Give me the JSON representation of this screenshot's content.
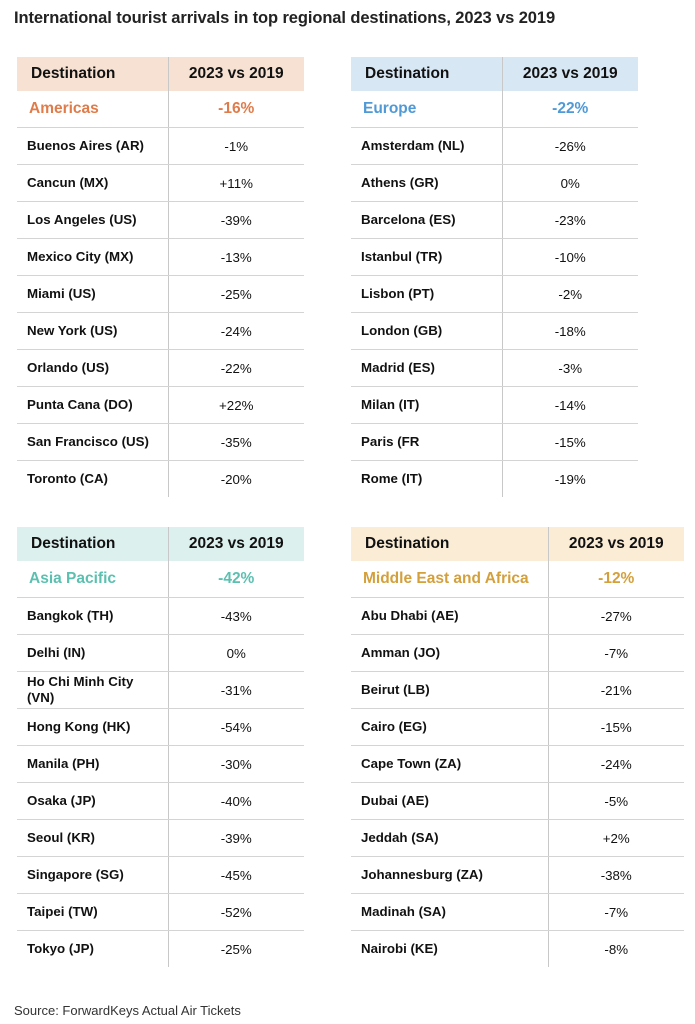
{
  "title": "International tourist arrivals in top regional destinations, 2023 vs 2019",
  "source": "Source: ForwardKeys Actual Air Tickets",
  "columns": {
    "destination": "Destination",
    "change": "2023 vs 2019"
  },
  "regions": [
    {
      "name": "Americas",
      "total": "-16%",
      "header_color": "#f6e1d3",
      "accent_color": "#e07b4a",
      "rows": [
        {
          "destination": "Buenos Aires (AR)",
          "change": "-1%"
        },
        {
          "destination": "Cancun (MX)",
          "change": "+11%"
        },
        {
          "destination": "Los Angeles (US)",
          "change": "-39%"
        },
        {
          "destination": "Mexico City (MX)",
          "change": "-13%"
        },
        {
          "destination": "Miami (US)",
          "change": "-25%"
        },
        {
          "destination": "New York (US)",
          "change": "-24%"
        },
        {
          "destination": "Orlando (US)",
          "change": "-22%"
        },
        {
          "destination": "Punta Cana (DO)",
          "change": "+22%"
        },
        {
          "destination": "San Francisco (US)",
          "change": "-35%"
        },
        {
          "destination": "Toronto (CA)",
          "change": "-20%"
        }
      ]
    },
    {
      "name": "Europe",
      "total": "-22%",
      "header_color": "#d8e7f4",
      "accent_color": "#4f9ad6",
      "rows": [
        {
          "destination": "Amsterdam (NL)",
          "change": "-26%"
        },
        {
          "destination": "Athens (GR)",
          "change": "0%"
        },
        {
          "destination": "Barcelona (ES)",
          "change": "-23%"
        },
        {
          "destination": "Istanbul (TR)",
          "change": "-10%"
        },
        {
          "destination": "Lisbon (PT)",
          "change": "-2%"
        },
        {
          "destination": "London (GB)",
          "change": "-18%"
        },
        {
          "destination": "Madrid (ES)",
          "change": "-3%"
        },
        {
          "destination": "Milan (IT)",
          "change": "-14%"
        },
        {
          "destination": "Paris (FR",
          "change": "-15%"
        },
        {
          "destination": "Rome (IT)",
          "change": "-19%"
        }
      ]
    },
    {
      "name": "Asia Pacific",
      "total": "-42%",
      "header_color": "#dcf0ed",
      "accent_color": "#5cc0b0",
      "rows": [
        {
          "destination": "Bangkok (TH)",
          "change": "-43%"
        },
        {
          "destination": "Delhi (IN)",
          "change": "0%"
        },
        {
          "destination": "Ho Chi Minh City (VN)",
          "change": "-31%"
        },
        {
          "destination": "Hong Kong (HK)",
          "change": "-54%"
        },
        {
          "destination": "Manila (PH)",
          "change": "-30%"
        },
        {
          "destination": "Osaka (JP)",
          "change": "-40%"
        },
        {
          "destination": "Seoul (KR)",
          "change": "-39%"
        },
        {
          "destination": "Singapore (SG)",
          "change": "-45%"
        },
        {
          "destination": "Taipei (TW)",
          "change": "-52%"
        },
        {
          "destination": "Tokyo (JP)",
          "change": "-25%"
        }
      ]
    },
    {
      "name": "Middle East and Africa",
      "total": "-12%",
      "header_color": "#faecd5",
      "accent_color": "#d4a03c",
      "rows": [
        {
          "destination": "Abu Dhabi (AE)",
          "change": "-27%"
        },
        {
          "destination": "Amman (JO)",
          "change": "-7%"
        },
        {
          "destination": "Beirut (LB)",
          "change": "-21%"
        },
        {
          "destination": "Cairo (EG)",
          "change": "-15%"
        },
        {
          "destination": "Cape Town (ZA)",
          "change": "-24%"
        },
        {
          "destination": "Dubai (AE)",
          "change": "-5%"
        },
        {
          "destination": "Jeddah (SA)",
          "change": "+2%"
        },
        {
          "destination": "Johannesburg (ZA)",
          "change": "-38%"
        },
        {
          "destination": "Madinah (SA)",
          "change": "-7%"
        },
        {
          "destination": "Nairobi (KE)",
          "change": "-8%"
        }
      ]
    }
  ]
}
